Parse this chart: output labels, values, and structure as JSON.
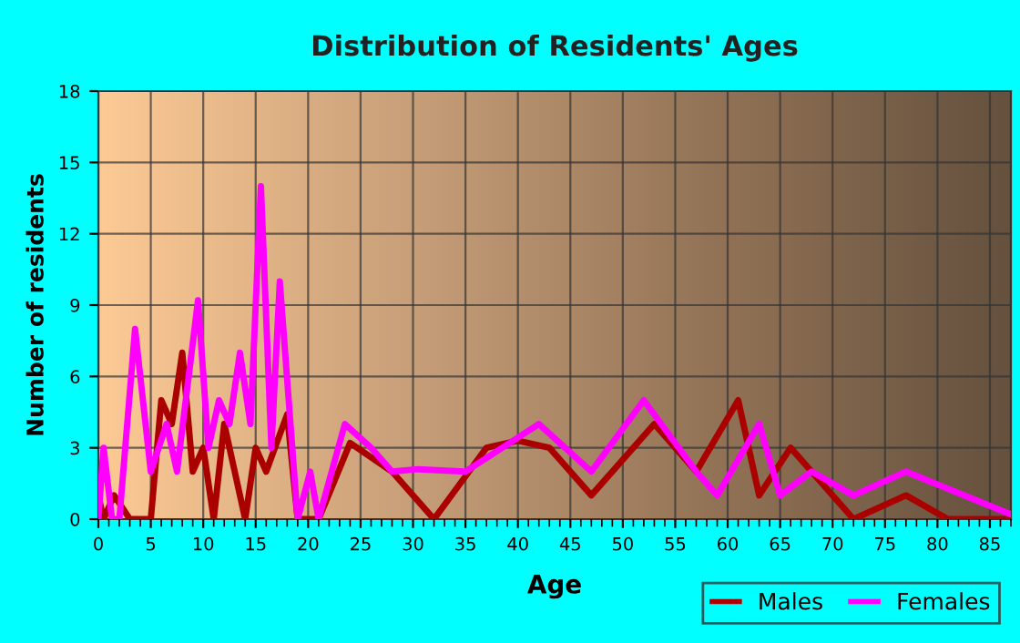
{
  "chart_data": {
    "type": "line",
    "title": "Distribution of Residents' Ages",
    "xlabel": "Age",
    "ylabel": "Number of residents",
    "xlim": [
      0,
      87
    ],
    "ylim": [
      0,
      18
    ],
    "xticks": [
      0,
      5,
      10,
      15,
      20,
      25,
      30,
      35,
      40,
      45,
      50,
      55,
      60,
      65,
      70,
      75,
      80,
      85
    ],
    "yticks": [
      0,
      3,
      6,
      9,
      12,
      15,
      18
    ],
    "grid": true,
    "legend": "bottom right",
    "marker": "none",
    "line_style": "solid",
    "series": [
      {
        "name": "Males",
        "color": "#aa0000",
        "x": [
          0,
          0.5,
          1.5,
          3,
          5,
          6,
          7,
          8,
          9,
          10,
          11,
          12,
          14,
          15,
          16,
          18,
          19,
          21,
          24,
          28,
          32,
          37,
          40,
          43,
          47,
          53,
          57,
          61,
          63,
          66,
          72,
          77,
          81,
          87
        ],
        "values": [
          1,
          0,
          1,
          0,
          0,
          5,
          4,
          7,
          2,
          3,
          0,
          4,
          0,
          3,
          2,
          4.4,
          0,
          0,
          3.2,
          2,
          0,
          3,
          3.3,
          3,
          1,
          4,
          2,
          5,
          1,
          3,
          0,
          1,
          0,
          0
        ]
      },
      {
        "name": "Females",
        "color": "#ff00ff",
        "x": [
          0,
          0.5,
          1.3,
          2,
          3.5,
          5,
          6.5,
          7.5,
          9.5,
          10.5,
          11.5,
          12.5,
          13.5,
          14.5,
          15.5,
          16.5,
          17.3,
          19,
          20.2,
          21,
          23.5,
          26,
          28,
          30.5,
          35,
          42,
          47,
          52,
          57,
          59,
          63,
          65,
          68,
          72,
          77,
          87
        ],
        "values": [
          0,
          3,
          0,
          0,
          8,
          2,
          4,
          2,
          9.2,
          3,
          5,
          4,
          7,
          4,
          14,
          3,
          10,
          0,
          2,
          0,
          4,
          3,
          2,
          2.1,
          2,
          4,
          2,
          5,
          2,
          1,
          4,
          1,
          2,
          1,
          2,
          0.2
        ]
      }
    ]
  }
}
